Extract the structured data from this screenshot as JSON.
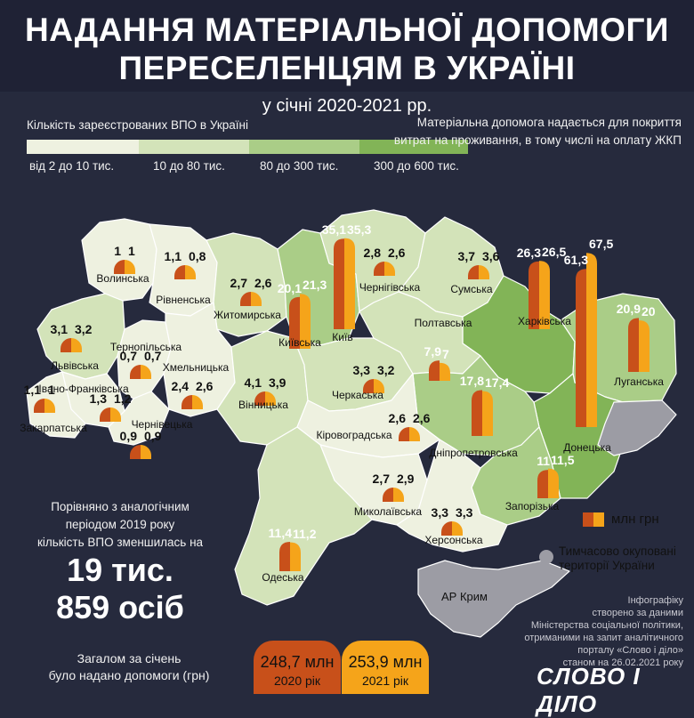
{
  "title_lines": [
    "НАДАННЯ МАТЕРІАЛЬНОЇ ДОПОМОГИ",
    "ПЕРЕСЕЛЕНЦЯМ В УКРАЇНІ"
  ],
  "subtitle": "у січні 2020-2021 рр.",
  "legend": {
    "title": "Кількість зареєстрованих ВПО в Україні",
    "classes": [
      {
        "label": "від 2 до 10 тис.",
        "color": "#eef1e0"
      },
      {
        "label": "10 до 80 тис.",
        "color": "#d3e3b9"
      },
      {
        "label": "80 до 300 тис.",
        "color": "#aacd87"
      },
      {
        "label": "300 до 600 тис.",
        "color": "#82b457"
      }
    ]
  },
  "note": "Матеріальна допомога надається для покриття витрат на проживання, в тому числі на оплату ЖКП",
  "colors": {
    "y2020": "#c8501a",
    "y2021": "#f5a41a",
    "background": "#262a3d",
    "occupied": "#9c9ca4"
  },
  "regions": [
    {
      "name": "Волинська",
      "v2020": "1",
      "v2021": "1"
    },
    {
      "name": "Рівненська",
      "v2020": "1,1",
      "v2021": "0,8"
    },
    {
      "name": "Житомирська",
      "v2020": "2,7",
      "v2021": "2,6"
    },
    {
      "name": "Київська",
      "v2020": "20,1",
      "v2021": "21,3"
    },
    {
      "name": "Київ",
      "v2020": "35,1",
      "v2021": "35,3"
    },
    {
      "name": "Чернігівська",
      "v2020": "2,8",
      "v2021": "2,6"
    },
    {
      "name": "Сумська",
      "v2020": "3,7",
      "v2021": "3,6"
    },
    {
      "name": "Харківська",
      "v2020": "26,3",
      "v2021": "26,5"
    },
    {
      "name": "Донецька",
      "v2020": "61,3",
      "v2021": "67,5"
    },
    {
      "name": "Луганська",
      "v2020": "20,9",
      "v2021": "20"
    },
    {
      "name": "Львівська",
      "v2020": "3,1",
      "v2021": "3,2"
    },
    {
      "name": "Тернопільська",
      "v2020": "0,7",
      "v2021": "0,7"
    },
    {
      "name": "Хмельницька",
      "v2020": "2,4",
      "v2021": "2,6"
    },
    {
      "name": "Івано-Франківська",
      "v2020": "1,3",
      "v2021": "1,2"
    },
    {
      "name": "Закарпатська",
      "v2020": "1,1",
      "v2021": "1"
    },
    {
      "name": "Чернівецька",
      "v2020": "0,9",
      "v2021": "0,9"
    },
    {
      "name": "Вінницька",
      "v2020": "4,1",
      "v2021": "3,9"
    },
    {
      "name": "Черкаська",
      "v2020": "3,3",
      "v2021": "3,2"
    },
    {
      "name": "Полтавська",
      "v2020": "7,9",
      "v2021": "7"
    },
    {
      "name": "Дніпропетровська",
      "v2020": "17,8",
      "v2021": "17,4"
    },
    {
      "name": "Кіровоградська",
      "v2020": "2,6",
      "v2021": "2,6"
    },
    {
      "name": "Запорізька",
      "v2020": "11",
      "v2021": "11,5"
    },
    {
      "name": "Миколаївська",
      "v2020": "2,7",
      "v2021": "2,9"
    },
    {
      "name": "Херсонська",
      "v2020": "3,3",
      "v2021": "3,3"
    },
    {
      "name": "Одеська",
      "v2020": "11,4",
      "v2021": "11,2"
    }
  ],
  "unit_legend": "млн грн",
  "occupied_label": [
    "Тимчасово окуповані",
    "території України"
  ],
  "crimea_label": "АР Крим",
  "compare_text": [
    "Порівняно з аналогічним",
    "періодом 2019 року",
    "кількість ВПО зменшилась на"
  ],
  "compare_big": [
    "19 тис.",
    "859 осіб"
  ],
  "total_note": [
    "Загалом за січень",
    "було надано допомоги (грн)"
  ],
  "totals": [
    {
      "amount": "248,7 млн",
      "year": "2020 рік"
    },
    {
      "amount": "253,9 млн",
      "year": "2021 рік"
    }
  ],
  "source": [
    "Інфографіку",
    "створено за даними",
    "Міністерства соціальної політики,",
    "отриманими на запит аналітичного",
    "порталу «Слово і діло»",
    "станом на 26.02.2021 року"
  ],
  "brand": "СЛОВО І ДІЛО"
}
